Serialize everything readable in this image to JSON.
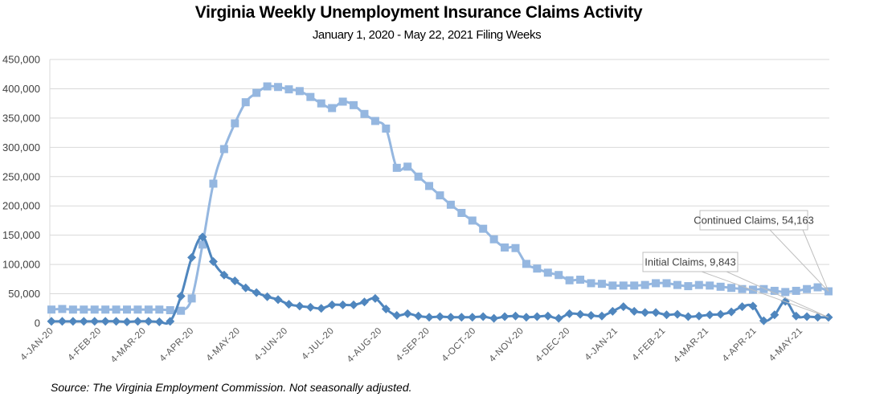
{
  "chart_data": {
    "type": "line",
    "title": "Virginia Weekly Unemployment Insurance Claims Activity",
    "subtitle": "January 1, 2020 - May 22, 2021 Filing Weeks",
    "source": "Source: The Virginia Employment Commission. Not seasonally adjusted.",
    "xlabel": "",
    "ylabel": "",
    "ylim": [
      0,
      450000
    ],
    "yticks": [
      0,
      50000,
      100000,
      150000,
      200000,
      250000,
      300000,
      350000,
      400000,
      450000
    ],
    "ytick_labels": [
      "0",
      "50,000",
      "100,000",
      "150,000",
      "200,000",
      "250,000",
      "300,000",
      "350,000",
      "400,000",
      "450,000"
    ],
    "x_start": "2020-01-04",
    "x_interval": "weekly",
    "xtick_labels": [
      {
        "label": "4-JAN-20",
        "index": 0
      },
      {
        "label": "4-FEB-20",
        "index": 4.43
      },
      {
        "label": "4-MAR-20",
        "index": 8.57
      },
      {
        "label": "4-APR-20",
        "index": 13
      },
      {
        "label": "4-MAY-20",
        "index": 17.29
      },
      {
        "label": "4-JUN-20",
        "index": 21.71
      },
      {
        "label": "4-JUL-20",
        "index": 26
      },
      {
        "label": "4-AUG-20",
        "index": 30.43
      },
      {
        "label": "4-SEP-20",
        "index": 34.86
      },
      {
        "label": "4-OCT-20",
        "index": 39.14
      },
      {
        "label": "4-NOV-20",
        "index": 43.57
      },
      {
        "label": "4-DEC-20",
        "index": 47.86
      },
      {
        "label": "4-JAN-21",
        "index": 52.29
      },
      {
        "label": "4-FEB-21",
        "index": 56.71
      },
      {
        "label": "4-MAR-21",
        "index": 60.71
      },
      {
        "label": "4-APR-21",
        "index": 65.14
      },
      {
        "label": "4-MAY-21",
        "index": 69.43
      }
    ],
    "grid": true,
    "legend": "none",
    "series": [
      {
        "name": "Continued Claims",
        "color": "#95b7e0",
        "marker": "square",
        "values": [
          23000,
          24000,
          23000,
          23000,
          23000,
          23000,
          23000,
          23000,
          23000,
          23000,
          23000,
          22000,
          21000,
          42000,
          134000,
          238000,
          297000,
          341000,
          377000,
          393000,
          404000,
          403000,
          399000,
          396000,
          386000,
          375000,
          367000,
          378000,
          372000,
          357000,
          345000,
          332000,
          265000,
          267000,
          250000,
          234000,
          218000,
          202000,
          188000,
          175000,
          161000,
          143000,
          129000,
          128000,
          101000,
          93000,
          86000,
          82000,
          73000,
          74000,
          68000,
          67000,
          64000,
          64000,
          64000,
          65000,
          68000,
          68000,
          65000,
          63000,
          65000,
          64000,
          62000,
          60000,
          58000,
          57000,
          58000,
          55000,
          53000,
          55000,
          58000,
          61000,
          54163
        ]
      },
      {
        "name": "Initial Claims",
        "color": "#4f86be",
        "marker": "diamond",
        "values": [
          3000,
          3000,
          3000,
          3000,
          3000,
          3000,
          3000,
          2000,
          3000,
          3000,
          2000,
          3000,
          46000,
          112000,
          147000,
          105000,
          82000,
          72000,
          60000,
          52000,
          45000,
          40000,
          32000,
          29000,
          27000,
          25000,
          31000,
          31000,
          31000,
          36000,
          42000,
          24000,
          13000,
          16000,
          12000,
          10000,
          11000,
          10000,
          10000,
          10000,
          11000,
          8000,
          11000,
          12000,
          10000,
          11000,
          12000,
          8000,
          16000,
          15000,
          13000,
          12000,
          20000,
          28000,
          20000,
          18000,
          18000,
          14000,
          15000,
          11000,
          12000,
          14000,
          15000,
          19000,
          28000,
          29000,
          4000,
          14000,
          37000,
          12000,
          11000,
          10000,
          9843
        ]
      }
    ],
    "annotations": [
      {
        "text": "Continued Claims, 54,163",
        "series": "Continued Claims",
        "point_index": 72
      },
      {
        "text": "Initial Claims, 9,843",
        "series": "Initial Claims",
        "point_index": 72
      }
    ]
  }
}
